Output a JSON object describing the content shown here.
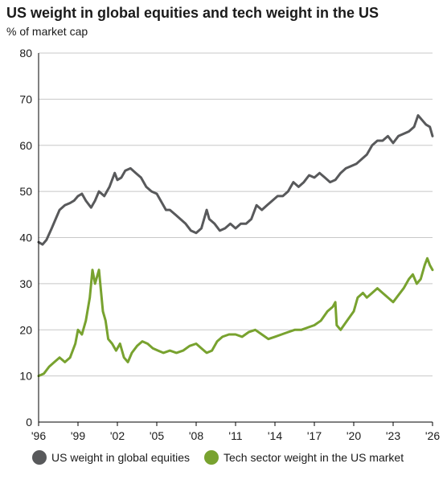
{
  "header": {
    "title": "US weight in global equities and tech weight in the US",
    "subtitle": "% of market cap"
  },
  "chart_data": {
    "type": "line",
    "title": "US weight in global equities and tech weight in the US",
    "ylabel": "% of market cap",
    "xlabel": "",
    "xlim": [
      1996.0,
      2026.0
    ],
    "ylim": [
      0,
      80
    ],
    "y_ticks": [
      0,
      10,
      20,
      30,
      40,
      50,
      60,
      70,
      80
    ],
    "x_ticks": [
      {
        "value": 1996,
        "label": "'96"
      },
      {
        "value": 1999,
        "label": "'99"
      },
      {
        "value": 2002,
        "label": "'02"
      },
      {
        "value": 2005,
        "label": "'05"
      },
      {
        "value": 2008,
        "label": "'08"
      },
      {
        "value": 2011,
        "label": "'11"
      },
      {
        "value": 2014,
        "label": "'14"
      },
      {
        "value": 2017,
        "label": "'17"
      },
      {
        "value": 2020,
        "label": "'20"
      },
      {
        "value": 2023,
        "label": "'23"
      },
      {
        "value": 2026,
        "label": "'26"
      }
    ],
    "grid": "horizontal",
    "legend_position": "bottom",
    "series": [
      {
        "name": "US weight in global equities",
        "color": "#58595b",
        "points": [
          [
            1996.0,
            39
          ],
          [
            1996.3,
            38.5
          ],
          [
            1996.6,
            39.5
          ],
          [
            1997.0,
            42
          ],
          [
            1997.3,
            44
          ],
          [
            1997.6,
            46
          ],
          [
            1998.0,
            47
          ],
          [
            1998.4,
            47.5
          ],
          [
            1998.7,
            48
          ],
          [
            1999.0,
            49
          ],
          [
            1999.3,
            49.5
          ],
          [
            1999.6,
            48
          ],
          [
            2000.0,
            46.5
          ],
          [
            2000.3,
            48
          ],
          [
            2000.6,
            50
          ],
          [
            2001.0,
            49
          ],
          [
            2001.4,
            51
          ],
          [
            2001.8,
            54
          ],
          [
            2002.0,
            52.5
          ],
          [
            2002.3,
            53
          ],
          [
            2002.6,
            54.5
          ],
          [
            2003.0,
            55
          ],
          [
            2003.4,
            54
          ],
          [
            2003.8,
            53
          ],
          [
            2004.2,
            51
          ],
          [
            2004.6,
            50
          ],
          [
            2005.0,
            49.5
          ],
          [
            2005.3,
            48
          ],
          [
            2005.7,
            46
          ],
          [
            2006.0,
            46
          ],
          [
            2006.4,
            45
          ],
          [
            2006.8,
            44
          ],
          [
            2007.2,
            43
          ],
          [
            2007.6,
            41.5
          ],
          [
            2008.0,
            41
          ],
          [
            2008.4,
            42
          ],
          [
            2008.8,
            46
          ],
          [
            2009.0,
            44
          ],
          [
            2009.4,
            43
          ],
          [
            2009.8,
            41.5
          ],
          [
            2010.2,
            42
          ],
          [
            2010.6,
            43
          ],
          [
            2011.0,
            42
          ],
          [
            2011.4,
            43
          ],
          [
            2011.8,
            43
          ],
          [
            2012.2,
            44
          ],
          [
            2012.6,
            47
          ],
          [
            2013.0,
            46
          ],
          [
            2013.4,
            47
          ],
          [
            2013.8,
            48
          ],
          [
            2014.2,
            49
          ],
          [
            2014.6,
            49
          ],
          [
            2015.0,
            50
          ],
          [
            2015.4,
            52
          ],
          [
            2015.8,
            51
          ],
          [
            2016.2,
            52
          ],
          [
            2016.6,
            53.5
          ],
          [
            2017.0,
            53
          ],
          [
            2017.4,
            54
          ],
          [
            2017.8,
            53
          ],
          [
            2018.2,
            52
          ],
          [
            2018.6,
            52.5
          ],
          [
            2019.0,
            54
          ],
          [
            2019.4,
            55
          ],
          [
            2019.8,
            55.5
          ],
          [
            2020.2,
            56
          ],
          [
            2020.6,
            57
          ],
          [
            2021.0,
            58
          ],
          [
            2021.4,
            60
          ],
          [
            2021.8,
            61
          ],
          [
            2022.2,
            61
          ],
          [
            2022.6,
            62
          ],
          [
            2023.0,
            60.5
          ],
          [
            2023.4,
            62
          ],
          [
            2023.8,
            62.5
          ],
          [
            2024.2,
            63
          ],
          [
            2024.6,
            64
          ],
          [
            2024.9,
            66.5
          ],
          [
            2025.2,
            65.5
          ],
          [
            2025.5,
            64.5
          ],
          [
            2025.8,
            64
          ],
          [
            2026.0,
            62
          ]
        ]
      },
      {
        "name": "Tech sector weight in the US market",
        "color": "#78a22f",
        "points": [
          [
            1996.0,
            10
          ],
          [
            1996.4,
            10.5
          ],
          [
            1996.8,
            12
          ],
          [
            1997.2,
            13
          ],
          [
            1997.6,
            14
          ],
          [
            1998.0,
            13
          ],
          [
            1998.4,
            14
          ],
          [
            1998.8,
            17
          ],
          [
            1999.0,
            20
          ],
          [
            1999.3,
            19
          ],
          [
            1999.6,
            22
          ],
          [
            1999.9,
            27
          ],
          [
            2000.1,
            33
          ],
          [
            2000.3,
            30
          ],
          [
            2000.6,
            33
          ],
          [
            2000.9,
            24
          ],
          [
            2001.1,
            22
          ],
          [
            2001.3,
            18
          ],
          [
            2001.6,
            17
          ],
          [
            2001.9,
            15.5
          ],
          [
            2002.2,
            17
          ],
          [
            2002.5,
            14
          ],
          [
            2002.8,
            13
          ],
          [
            2003.1,
            15
          ],
          [
            2003.5,
            16.5
          ],
          [
            2003.9,
            17.5
          ],
          [
            2004.3,
            17
          ],
          [
            2004.7,
            16
          ],
          [
            2005.1,
            15.5
          ],
          [
            2005.5,
            15
          ],
          [
            2006.0,
            15.5
          ],
          [
            2006.5,
            15
          ],
          [
            2007.0,
            15.5
          ],
          [
            2007.5,
            16.5
          ],
          [
            2008.0,
            17
          ],
          [
            2008.4,
            16
          ],
          [
            2008.8,
            15
          ],
          [
            2009.2,
            15.5
          ],
          [
            2009.6,
            17.5
          ],
          [
            2010.0,
            18.5
          ],
          [
            2010.5,
            19
          ],
          [
            2011.0,
            19
          ],
          [
            2011.5,
            18.5
          ],
          [
            2012.0,
            19.5
          ],
          [
            2012.5,
            20
          ],
          [
            2013.0,
            19
          ],
          [
            2013.5,
            18
          ],
          [
            2014.0,
            18.5
          ],
          [
            2014.5,
            19
          ],
          [
            2015.0,
            19.5
          ],
          [
            2015.5,
            20
          ],
          [
            2016.0,
            20
          ],
          [
            2016.5,
            20.5
          ],
          [
            2017.0,
            21
          ],
          [
            2017.5,
            22
          ],
          [
            2018.0,
            24
          ],
          [
            2018.4,
            25
          ],
          [
            2018.6,
            26
          ],
          [
            2018.7,
            21
          ],
          [
            2019.0,
            20
          ],
          [
            2019.5,
            22
          ],
          [
            2020.0,
            24
          ],
          [
            2020.3,
            27
          ],
          [
            2020.7,
            28
          ],
          [
            2021.0,
            27
          ],
          [
            2021.4,
            28
          ],
          [
            2021.8,
            29
          ],
          [
            2022.2,
            28
          ],
          [
            2022.6,
            27
          ],
          [
            2023.0,
            26
          ],
          [
            2023.4,
            27.5
          ],
          [
            2023.8,
            29
          ],
          [
            2024.2,
            31
          ],
          [
            2024.5,
            32
          ],
          [
            2024.8,
            30
          ],
          [
            2025.1,
            31
          ],
          [
            2025.4,
            34
          ],
          [
            2025.6,
            35.5
          ],
          [
            2025.8,
            34
          ],
          [
            2026.0,
            33
          ]
        ]
      }
    ]
  }
}
